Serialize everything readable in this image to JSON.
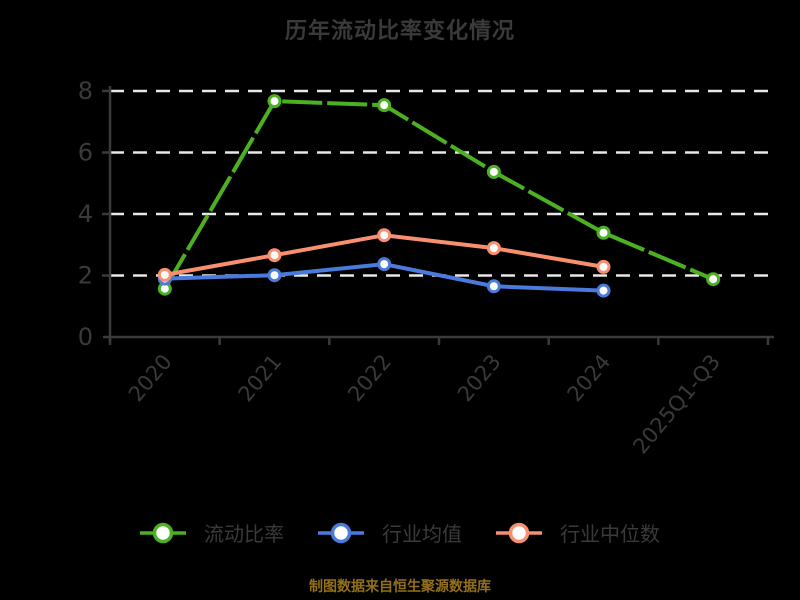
{
  "chart_data": {
    "type": "line",
    "title": "历年流动比率变化情况",
    "categories": [
      "2020",
      "2021",
      "2022",
      "2023",
      "2024",
      "2025Q1-Q3"
    ],
    "series": [
      {
        "name": "流动比率",
        "color": "#4cb122",
        "dash": "40 5",
        "values": [
          1.57,
          7.67,
          7.54,
          5.37,
          3.39,
          1.88
        ]
      },
      {
        "name": "行业均值",
        "color": "#4a7bdc",
        "dash": "",
        "values": [
          1.9,
          2.01,
          2.37,
          1.65,
          1.51,
          null
        ]
      },
      {
        "name": "行业中位数",
        "color": "#f88f6e",
        "dash": "",
        "values": [
          2.02,
          2.66,
          3.31,
          2.89,
          2.28,
          null
        ]
      }
    ],
    "xlabel": "",
    "ylabel": "",
    "ylim": [
      0,
      8
    ],
    "yticks": [
      0,
      2,
      4,
      6,
      8
    ],
    "grid": "horizontal dashed",
    "legend_position": "bottom",
    "source_note": "制图数据来自恒生聚源数据库",
    "colors": {
      "background": "#000000",
      "text": "#3a3a3a",
      "axis": "#3a3a3a",
      "gridline": "#e8e8e8",
      "source_note": "#937019",
      "marker_fill": "#ffffff"
    }
  }
}
